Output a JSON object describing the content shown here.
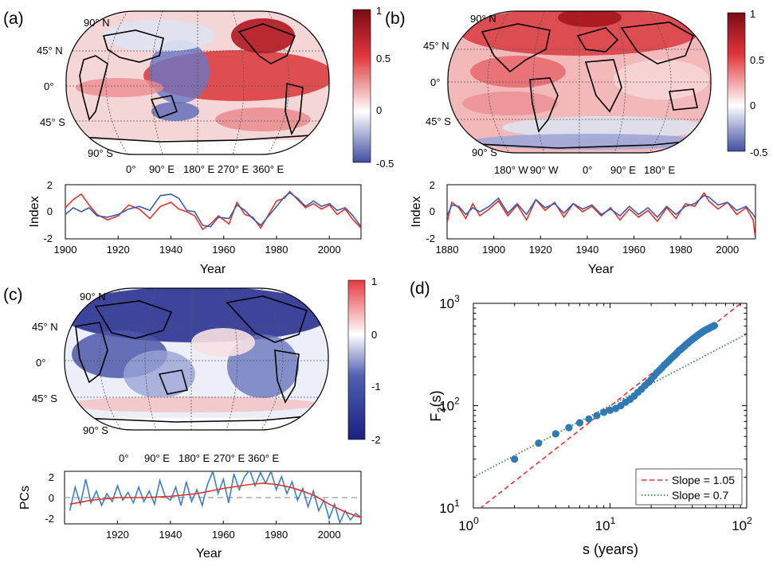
{
  "chart_data": [
    {
      "id": "a",
      "panel_label": "(a)",
      "type": "heatmap",
      "map_lat_labels": [
        "90° N",
        "45° N",
        "0°",
        "45° S",
        "90° S"
      ],
      "map_lon_labels": [
        "0°",
        "90° E",
        "180° E",
        "270° E",
        "360° E"
      ],
      "colorbar": {
        "ticks": [
          "1",
          "0.5",
          "0",
          "-0.5"
        ],
        "range": [
          -0.5,
          1
        ],
        "colors": [
          "#3f4ea2",
          "#ffffff",
          "#7a0b16"
        ]
      },
      "index_chart": {
        "type": "line",
        "ylabel": "Index",
        "xlabel": "Year",
        "xlim": [
          1900,
          2012
        ],
        "ylim": [
          -2,
          2
        ],
        "xticks": [
          "1900",
          "1920",
          "1940",
          "1960",
          "1980",
          "2000"
        ],
        "yticks": [
          "2",
          "0",
          "-2"
        ],
        "series": [
          {
            "color": "#e8312b",
            "x": [
              1900,
              1903,
              1906,
              1909,
              1912,
              1916,
              1920,
              1924,
              1928,
              1932,
              1936,
              1940,
              1943,
              1946,
              1949,
              1952,
              1955,
              1958,
              1962,
              1965,
              1968,
              1971,
              1974,
              1977,
              1980,
              1983,
              1985,
              1988,
              1991,
              1994,
              1997,
              2000,
              2003,
              2006,
              2009,
              2012
            ],
            "values": [
              0.3,
              0.9,
              1.3,
              0.5,
              -0.2,
              -0.6,
              -0.3,
              0.5,
              0.2,
              -0.5,
              0.4,
              0.7,
              0.2,
              0.0,
              -0.3,
              -1.3,
              -0.9,
              -0.3,
              -0.9,
              0.7,
              -0.2,
              -0.4,
              -1.2,
              -0.2,
              0.8,
              1.0,
              1.5,
              0.9,
              0.3,
              0.6,
              0.2,
              0.5,
              -0.2,
              0.2,
              -0.6,
              -1.2
            ]
          },
          {
            "color": "#3a5bb0",
            "x": [
              1900,
              1903,
              1906,
              1909,
              1912,
              1916,
              1920,
              1924,
              1928,
              1932,
              1936,
              1940,
              1943,
              1946,
              1949,
              1952,
              1955,
              1958,
              1962,
              1965,
              1968,
              1971,
              1974,
              1977,
              1980,
              1983,
              1985,
              1988,
              1991,
              1994,
              1997,
              2000,
              2003,
              2006,
              2009,
              2012
            ],
            "values": [
              -0.2,
              0.3,
              0.0,
              0.3,
              -0.3,
              -0.4,
              -0.2,
              0.2,
              0.4,
              0.1,
              1.2,
              1.3,
              1.0,
              0.1,
              0.0,
              -1.0,
              -1.1,
              -0.4,
              -0.5,
              0.5,
              0.1,
              -0.5,
              -1.0,
              -0.3,
              0.4,
              1.1,
              1.4,
              1.0,
              0.4,
              0.8,
              0.4,
              0.6,
              0.1,
              0.3,
              -0.3,
              -1.1
            ]
          }
        ]
      }
    },
    {
      "id": "b",
      "panel_label": "(b)",
      "type": "heatmap",
      "map_lat_labels": [
        "90° N",
        "45° N",
        "0°",
        "45° S",
        "90° S"
      ],
      "map_lon_labels": [
        "180° W",
        "90° W",
        "0°",
        "90° E",
        "180° E"
      ],
      "colorbar": {
        "ticks": [
          "1",
          "0.5",
          "0",
          "-0.5"
        ],
        "range": [
          -0.5,
          1
        ],
        "colors": [
          "#3f4ea2",
          "#ffffff",
          "#7a0b16"
        ]
      },
      "index_chart": {
        "type": "line",
        "ylabel": "Index",
        "xlabel": "Year",
        "xlim": [
          1880,
          2012
        ],
        "ylim": [
          -2,
          2
        ],
        "xticks": [
          "1880",
          "1900",
          "1920",
          "1940",
          "1960",
          "1980",
          "2000"
        ],
        "yticks": [
          "2",
          "0",
          "-2"
        ],
        "series": [
          {
            "color": "#e8312b",
            "x": [
              1880,
              1882,
              1885,
              1888,
              1891,
              1894,
              1898,
              1902,
              1906,
              1910,
              1914,
              1918,
              1922,
              1926,
              1930,
              1934,
              1938,
              1942,
              1946,
              1950,
              1954,
              1958,
              1962,
              1966,
              1970,
              1974,
              1978,
              1982,
              1986,
              1990,
              1992,
              1996,
              2000,
              2004,
              2008,
              2011,
              2012
            ],
            "values": [
              -0.8,
              0.7,
              0.3,
              -0.5,
              0.6,
              -0.3,
              0.2,
              0.8,
              -0.3,
              0.5,
              -0.6,
              0.9,
              0.1,
              0.7,
              -0.4,
              0.6,
              0.0,
              0.4,
              -0.3,
              0.3,
              -0.6,
              0.2,
              -0.4,
              0.1,
              -0.7,
              0.3,
              -0.5,
              0.6,
              0.4,
              1.4,
              0.8,
              0.2,
              0.7,
              -0.2,
              0.3,
              -0.6,
              -2.0
            ]
          },
          {
            "color": "#3a5bb0",
            "x": [
              1880,
              1882,
              1885,
              1888,
              1891,
              1894,
              1898,
              1902,
              1906,
              1910,
              1914,
              1918,
              1922,
              1926,
              1930,
              1934,
              1938,
              1942,
              1946,
              1950,
              1954,
              1958,
              1962,
              1966,
              1970,
              1974,
              1978,
              1982,
              1986,
              1990,
              1992,
              1996,
              2000,
              2004,
              2008,
              2011,
              2012
            ],
            "values": [
              -0.3,
              0.5,
              0.4,
              -0.2,
              0.3,
              0.0,
              0.4,
              1.0,
              -0.1,
              0.6,
              -0.2,
              0.9,
              0.3,
              0.6,
              -0.1,
              0.6,
              0.2,
              0.5,
              -0.2,
              0.2,
              -0.3,
              0.4,
              -0.2,
              0.3,
              -0.4,
              0.4,
              -0.2,
              0.4,
              0.6,
              1.2,
              1.1,
              0.5,
              0.7,
              0.1,
              0.4,
              -0.2,
              -0.5
            ]
          }
        ]
      }
    },
    {
      "id": "c",
      "panel_label": "(c)",
      "type": "heatmap",
      "map_lat_labels": [
        "90° N",
        "45° N",
        "0°",
        "45° S",
        "90° S"
      ],
      "map_lon_labels": [
        "0°",
        "90° E",
        "180° E",
        "270° E",
        "360° E"
      ],
      "colorbar": {
        "ticks": [
          "1",
          "0",
          "-1",
          "-2"
        ],
        "range": [
          -2,
          1
        ],
        "colors": [
          "#1c1f80",
          "#ffffff",
          "#e8393f"
        ]
      },
      "index_chart": {
        "type": "line",
        "ylabel": "PCs",
        "xlabel": "Year",
        "xlim": [
          1900,
          2012
        ],
        "ylim": [
          -2,
          2
        ],
        "xticks": [
          "1920",
          "1940",
          "1960",
          "1980",
          "2000"
        ],
        "yticks": [
          "2",
          "0",
          "-2"
        ],
        "series": [
          {
            "color": "#3c7fc4",
            "x": [
              1902,
              1904,
              1906,
              1908,
              1910,
              1912,
              1914,
              1916,
              1918,
              1920,
              1922,
              1924,
              1926,
              1928,
              1930,
              1932,
              1934,
              1936,
              1938,
              1940,
              1942,
              1944,
              1946,
              1948,
              1950,
              1952,
              1954,
              1956,
              1958,
              1960,
              1962,
              1964,
              1966,
              1968,
              1970,
              1972,
              1974,
              1976,
              1978,
              1980,
              1982,
              1984,
              1986,
              1988,
              1990,
              1992,
              1994,
              1996,
              1998,
              2000,
              2002,
              2004,
              2006,
              2008,
              2010,
              2012
            ],
            "values": [
              -1.0,
              0.8,
              -0.5,
              1.4,
              -0.4,
              0.5,
              -0.6,
              0.3,
              -0.3,
              0.9,
              -0.2,
              0.4,
              -0.4,
              0.8,
              -0.3,
              0.5,
              -0.5,
              1.3,
              0.1,
              -0.2,
              0.8,
              -0.6,
              1.2,
              -0.3,
              0.6,
              -0.6,
              1.0,
              2.0,
              0.3,
              1.4,
              -0.4,
              1.8,
              0.6,
              1.6,
              2.1,
              0.9,
              1.9,
              1.1,
              2.0,
              0.6,
              1.6,
              0.3,
              1.2,
              -0.2,
              0.7,
              -0.7,
              0.5,
              -1.0,
              -0.2,
              -1.6,
              -0.5,
              -1.9,
              -1.0,
              -1.7,
              -1.2,
              -1.5
            ]
          },
          {
            "color": "#e8312b",
            "x": [
              1902,
              1910,
              1920,
              1930,
              1940,
              1950,
              1960,
              1970,
              1975,
              1980,
              1985,
              1990,
              1995,
              2000,
              2005,
              2010,
              2012
            ],
            "values": [
              -0.5,
              -0.2,
              0.0,
              0.0,
              0.1,
              0.3,
              0.7,
              1.0,
              1.1,
              1.0,
              0.8,
              0.5,
              0.1,
              -0.5,
              -1.0,
              -1.4,
              -1.5
            ]
          }
        ],
        "reference_line": {
          "value": 0,
          "style": "dashed",
          "color": "#999999"
        }
      }
    },
    {
      "id": "d",
      "panel_label": "(d)",
      "type": "scatter",
      "xlabel": "s (years)",
      "ylabel": "F",
      "ylabel_subscript": "2",
      "ylabel_suffix": "(s)",
      "xscale": "log",
      "yscale": "log",
      "xlim": [
        1,
        100
      ],
      "ylim": [
        10,
        1000
      ],
      "xtick_bases": [
        "10",
        "10",
        "10"
      ],
      "xtick_exponents": [
        "0",
        "1",
        "2"
      ],
      "ytick_bases": [
        "10",
        "10",
        "10"
      ],
      "ytick_exponents": [
        "1",
        "2",
        "3"
      ],
      "points": {
        "color": "#2f79b5",
        "x": [
          2,
          3,
          4,
          5,
          6,
          7,
          8,
          9,
          10,
          11,
          12,
          13,
          14,
          15,
          16,
          17,
          18,
          19,
          20,
          21,
          22,
          23,
          24,
          25,
          26,
          27,
          28,
          29,
          30,
          31,
          32,
          33,
          34,
          35,
          36,
          37,
          38,
          39,
          40,
          41,
          42,
          43,
          44,
          45,
          46,
          47,
          48,
          49,
          50,
          51,
          52,
          53,
          54,
          55,
          56,
          57,
          58
        ],
        "y": [
          30,
          43,
          53,
          61,
          68,
          74,
          80,
          86,
          90,
          94,
          100,
          108,
          115,
          124,
          135,
          145,
          157,
          168,
          180,
          195,
          210,
          222,
          235,
          250,
          262,
          275,
          290,
          302,
          315,
          330,
          345,
          355,
          368,
          380,
          395,
          405,
          420,
          432,
          445,
          455,
          465,
          477,
          490,
          500,
          510,
          520,
          530,
          540,
          548,
          556,
          562,
          570,
          578,
          585,
          592,
          598,
          605
        ]
      },
      "fits": [
        {
          "name": "Slope = 1.05",
          "slope": 1.05,
          "intercept": 8.8,
          "color": "#e8312b",
          "style": "dashed"
        },
        {
          "name": "Slope = 0.7",
          "slope": 0.7,
          "intercept": 20,
          "color": "#2a8a3a",
          "style": "dotted"
        }
      ],
      "legend": "bottom-right"
    }
  ]
}
